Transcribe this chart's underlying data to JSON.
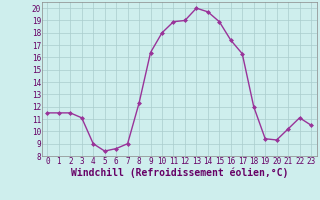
{
  "x": [
    0,
    1,
    2,
    3,
    4,
    5,
    6,
    7,
    8,
    9,
    10,
    11,
    12,
    13,
    14,
    15,
    16,
    17,
    18,
    19,
    20,
    21,
    22,
    23
  ],
  "y": [
    11.5,
    11.5,
    11.5,
    11.1,
    9.0,
    8.4,
    8.6,
    9.0,
    12.3,
    16.4,
    18.0,
    18.9,
    19.0,
    20.0,
    19.7,
    18.9,
    17.4,
    16.3,
    12.0,
    9.4,
    9.3,
    10.2,
    11.1,
    10.5
  ],
  "line_color": "#993399",
  "marker": "D",
  "marker_size": 2.0,
  "bg_color": "#ceeeed",
  "grid_color": "#aacccc",
  "xlabel": "Windchill (Refroidissement éolien,°C)",
  "ylim": [
    8,
    20.5
  ],
  "xlim": [
    -0.5,
    23.5
  ],
  "yticks": [
    8,
    9,
    10,
    11,
    12,
    13,
    14,
    15,
    16,
    17,
    18,
    19,
    20
  ],
  "xticks": [
    0,
    1,
    2,
    3,
    4,
    5,
    6,
    7,
    8,
    9,
    10,
    11,
    12,
    13,
    14,
    15,
    16,
    17,
    18,
    19,
    20,
    21,
    22,
    23
  ],
  "tick_fontsize": 5.5,
  "xlabel_fontsize": 7.0,
  "line_width": 1.0
}
